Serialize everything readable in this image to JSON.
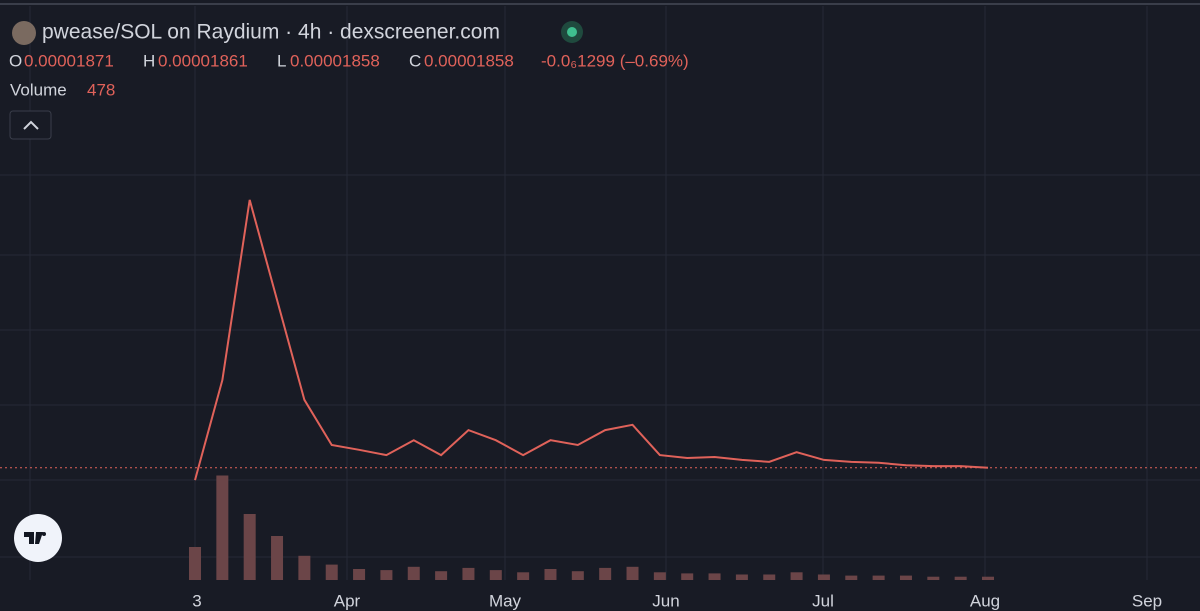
{
  "header": {
    "title": "pwease/SOL on Raydium · 4h · dexscreener.com",
    "ohlc": [
      {
        "label": "O",
        "value": "0.00001871"
      },
      {
        "label": "H",
        "value": "0.00001861"
      },
      {
        "label": "L",
        "value": "0.00001858"
      },
      {
        "label": "C",
        "value": "0.00001858"
      }
    ],
    "change": "-0.0₆1299 (–0.69%)",
    "volume_label": "Volume",
    "volume_value": "478"
  },
  "chart_data": {
    "type": "line",
    "categories": [
      null,
      null,
      null,
      null,
      null,
      null,
      null,
      null,
      null,
      null,
      null,
      null,
      null,
      null,
      null,
      null,
      null,
      null,
      null,
      null,
      null,
      null,
      null,
      null,
      null,
      null,
      null,
      null,
      null,
      null
    ],
    "xticks": [
      "3",
      "Apr",
      "May",
      "Jun",
      "Jul",
      "Aug",
      "Sep"
    ],
    "ylim": [
      0,
      8.01e-05
    ],
    "series": [
      {
        "color": "#e0625a",
        "values": [
          1.6e-05,
          3.68e-05,
          7.43e-05,
          5.35e-05,
          3.27e-05,
          2.33e-05,
          2.23e-05,
          2.12e-05,
          2.43e-05,
          2.12e-05,
          2.64e-05,
          2.43e-05,
          2.12e-05,
          2.43e-05,
          2.33e-05,
          2.64e-05,
          2.75e-05,
          2.12e-05,
          2.06e-05,
          2.08e-05,
          2.02e-05,
          1.98e-05,
          2.18e-05,
          2.02e-05,
          1.98e-05,
          1.96e-05,
          1.91e-05,
          1.89e-05,
          1.89e-05,
          1.858e-05
        ]
      }
    ],
    "volume": {
      "color": "#6b4548",
      "values": [
        30,
        95,
        60,
        40,
        22,
        14,
        10,
        9,
        12,
        8,
        11,
        9,
        7,
        10,
        8,
        11,
        12,
        7,
        6,
        6,
        5,
        5,
        7,
        5,
        4,
        4,
        4,
        3,
        3,
        3
      ],
      "ylim": [
        0,
        100
      ]
    }
  }
}
